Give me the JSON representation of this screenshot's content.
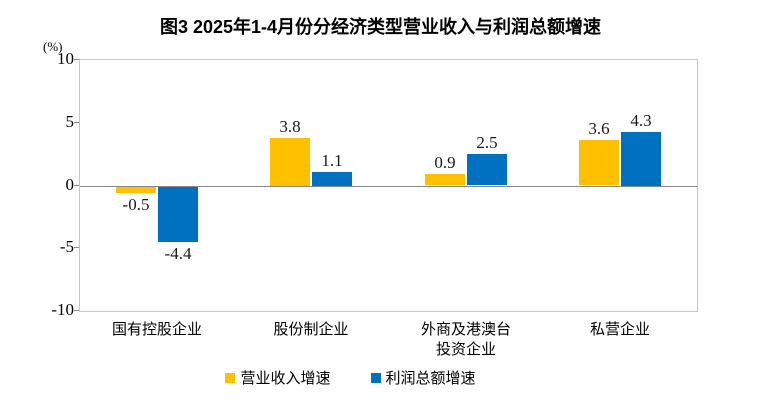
{
  "chart_data": {
    "type": "bar",
    "title": "图3 2025年1-4月份分经济类型营业收入与利润总额增速",
    "ylabel": "(%)",
    "xlabel": "",
    "ylim": [
      -10,
      10
    ],
    "yticks": [
      10,
      5,
      0,
      -5,
      -10
    ],
    "grid": false,
    "legend_position": "bottom",
    "categories": [
      "国有控股企业",
      "股份制企业",
      "外商及港澳台\n投资企业",
      "私营企业"
    ],
    "series": [
      {
        "key": "revenue",
        "name": "营业收入增速",
        "color": "#FFC000",
        "values": [
          -0.5,
          3.8,
          0.9,
          3.6
        ]
      },
      {
        "key": "profit",
        "name": "利润总额增速",
        "color": "#0070C0",
        "values": [
          -4.4,
          1.1,
          2.5,
          4.3
        ]
      }
    ],
    "value_labels": {
      "revenue": [
        "-0.5",
        "3.8",
        "0.9",
        "3.6"
      ],
      "profit": [
        "-4.4",
        "1.1",
        "2.5",
        "4.3"
      ]
    }
  },
  "colors": {
    "plot_border": "#c6c6c6",
    "zero_line": "#898989",
    "bar_revenue": "#FFC000",
    "bar_profit": "#0070C0",
    "text": "#000000",
    "value_text": "#1a1a1a"
  }
}
